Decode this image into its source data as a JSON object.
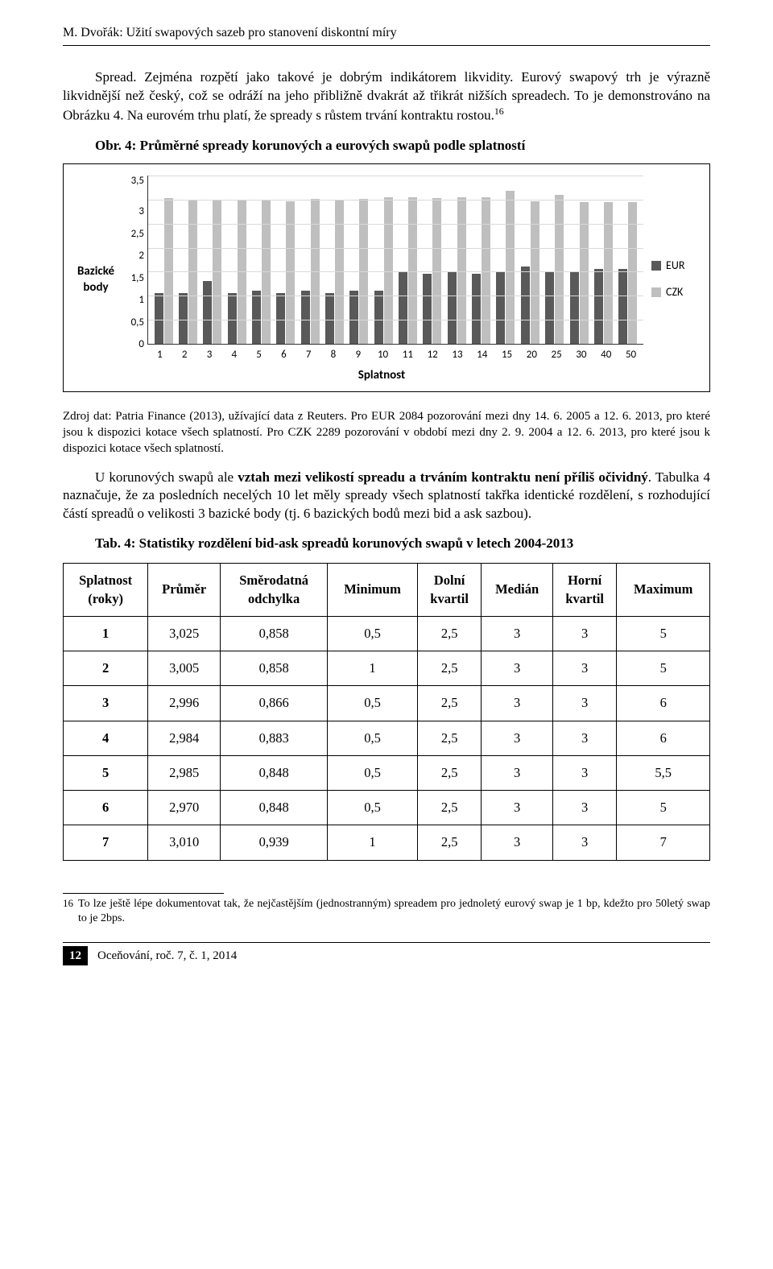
{
  "header": {
    "text": "M. Dvořák: Užití swapových sazeb pro stanovení diskontní míry"
  },
  "para1": {
    "text": "Spread. Zejména rozpětí jako takové je dobrým indikátorem likvidity. Eurový swapový trh je výrazně likvidnější než český, což se odráží na jeho přibližně dvakrát až třikrát nižších spreadech. To je demonstrováno na Obrázku 4. Na eurovém trhu platí, že spready s růstem trvání kontraktu rostou.",
    "sup": "16"
  },
  "figcaption": "Obr. 4: Průměrné spready korunových a eurových swapů podle splatností",
  "chart": {
    "type": "grouped-bar",
    "ylabel": "Bazické body",
    "xlabel": "Splatnost",
    "ymax": 3.5,
    "yticks": [
      "3,5",
      "3",
      "2,5",
      "2",
      "1,5",
      "1",
      "0,5",
      "0"
    ],
    "xticks": [
      "1",
      "2",
      "3",
      "4",
      "5",
      "6",
      "7",
      "8",
      "9",
      "10",
      "11",
      "12",
      "13",
      "14",
      "15",
      "20",
      "25",
      "30",
      "40",
      "50"
    ],
    "series": [
      {
        "name": "EUR",
        "color": "#595959",
        "values": [
          1.05,
          1.05,
          1.3,
          1.05,
          1.1,
          1.05,
          1.1,
          1.05,
          1.1,
          1.1,
          1.5,
          1.45,
          1.5,
          1.45,
          1.5,
          1.6,
          1.5,
          1.5,
          1.55,
          1.55
        ]
      },
      {
        "name": "CZK",
        "color": "#bfbfbf",
        "values": [
          3.03,
          3.0,
          3.0,
          2.98,
          2.99,
          2.97,
          3.01,
          3.0,
          3.02,
          3.04,
          3.04,
          3.03,
          3.05,
          3.05,
          3.18,
          2.97,
          3.1,
          2.95,
          2.95,
          2.95
        ]
      }
    ],
    "grid_color": "#d9d9d9",
    "background": "#ffffff",
    "border_color": "#333333"
  },
  "source": "Zdroj dat: Patria Finance (2013), užívající data z Reuters. Pro EUR 2084 pozorování mezi dny 14. 6. 2005 a 12. 6. 2013, pro které jsou k dispozici kotace všech splatností. Pro CZK 2289 pozorování v období mezi dny 2. 9. 2004 a 12. 6. 2013, pro které jsou k dispozici kotace všech splatností.",
  "para2": {
    "lead_bold": "vztah mezi velikostí spreadu a trváním kontraktu není příliš očividný",
    "text_pre": "U korunových swapů ale ",
    "text_post": ". Tabulka 4 naznačuje, že za posledních necelých 10 let měly spready všech splatností takřka identické rozdělení, s rozhodující částí spreadů o velikosti 3 bazické body (tj. 6 bazických bodů mezi bid a ask sazbou)."
  },
  "tabcaption": "Tab. 4: Statistiky rozdělení bid-ask spreadů korunových swapů v letech 2004-2013",
  "table": {
    "headers": [
      "Splatnost (roky)",
      "Průměr",
      "Směrodatná odchylka",
      "Minimum",
      "Dolní kvartil",
      "Medián",
      "Horní kvartil",
      "Maximum"
    ],
    "rows": [
      [
        "1",
        "3,025",
        "0,858",
        "0,5",
        "2,5",
        "3",
        "3",
        "5"
      ],
      [
        "2",
        "3,005",
        "0,858",
        "1",
        "2,5",
        "3",
        "3",
        "5"
      ],
      [
        "3",
        "2,996",
        "0,866",
        "0,5",
        "2,5",
        "3",
        "3",
        "6"
      ],
      [
        "4",
        "2,984",
        "0,883",
        "0,5",
        "2,5",
        "3",
        "3",
        "6"
      ],
      [
        "5",
        "2,985",
        "0,848",
        "0,5",
        "2,5",
        "3",
        "3",
        "5,5"
      ],
      [
        "6",
        "2,970",
        "0,848",
        "0,5",
        "2,5",
        "3",
        "3",
        "5"
      ],
      [
        "7",
        "3,010",
        "0,939",
        "1",
        "2,5",
        "3",
        "3",
        "7"
      ]
    ]
  },
  "footnote": {
    "num": "16",
    "text": "To lze ještě lépe dokumentovat tak, že nejčastějším (jednostranným) spreadem pro jednoletý eurový swap je 1 bp, kdežto pro 50letý swap to je 2bps."
  },
  "footer": {
    "pagenum": "12",
    "text": "Oceňování, roč. 7, č. 1, 2014"
  }
}
